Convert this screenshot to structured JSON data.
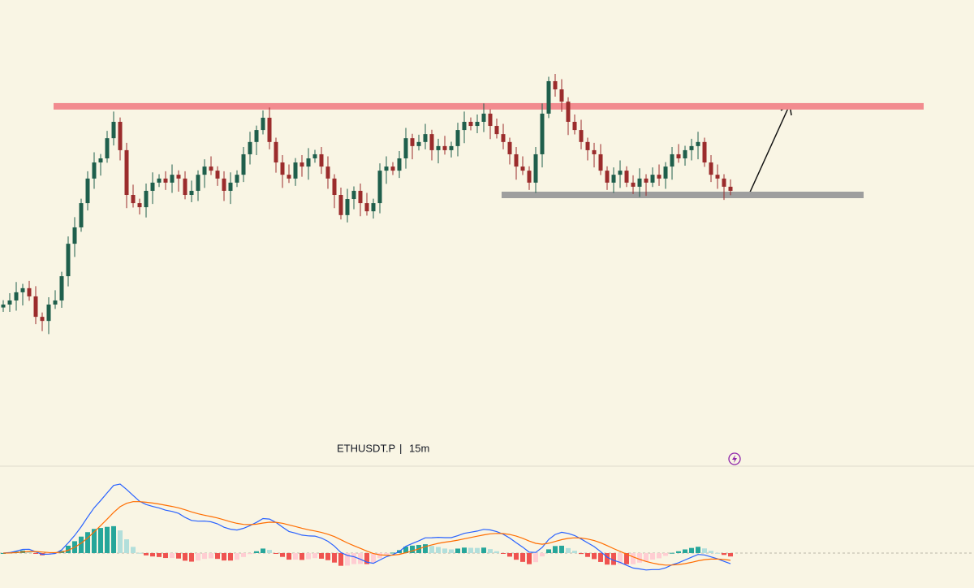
{
  "chart_data": {
    "type": "candlestick",
    "symbol": "ETHUSDT.P",
    "interval": "15m",
    "ylim": [
      0,
      100
    ],
    "closes": [
      12.5,
      13.9,
      16.7,
      18.1,
      15.3,
      8.3,
      6.9,
      12.5,
      13.9,
      22.2,
      33.3,
      38.9,
      47.2,
      55.6,
      61.1,
      62.5,
      69.4,
      75,
      65.3,
      50,
      47.2,
      45.8,
      51.4,
      54.2,
      55.6,
      54.2,
      56.9,
      55.6,
      50,
      51.4,
      56.9,
      59.7,
      58.3,
      55.6,
      51.4,
      54.2,
      56.9,
      63.9,
      68.1,
      72.2,
      76.4,
      68.1,
      61.1,
      56.9,
      55.6,
      61.1,
      59.7,
      62.5,
      63.9,
      59.7,
      55.6,
      50,
      43.1,
      48.6,
      51.4,
      47.2,
      44.4,
      47.2,
      58.3,
      59.7,
      58.3,
      62.5,
      69.4,
      66.7,
      68.1,
      70.8,
      65.3,
      66.7,
      65.3,
      66.7,
      72.2,
      75,
      73.6,
      75,
      77.8,
      73.6,
      70.8,
      68.1,
      63.9,
      59.7,
      58.3,
      54.2,
      63.9,
      77.8,
      88.9,
      86.1,
      81.9,
      75,
      72.2,
      68.1,
      65.3,
      63.9,
      58.3,
      54.2,
      56.9,
      58.3,
      54.2,
      52.8,
      55.6,
      54.2,
      56.9,
      55.6,
      59.7,
      63.9,
      62.5,
      65.3,
      66.7,
      68.1,
      61.1,
      56.9,
      55.6,
      52.8,
      51.4
    ],
    "levels": [
      {
        "name": "resistance",
        "value": 80.3,
        "color": "#f28b8f"
      },
      {
        "name": "support",
        "value": 50,
        "color": "#9e9e9e"
      }
    ],
    "up_color": "#1f5f4c",
    "down_color": "#9b2c2c"
  }
}
